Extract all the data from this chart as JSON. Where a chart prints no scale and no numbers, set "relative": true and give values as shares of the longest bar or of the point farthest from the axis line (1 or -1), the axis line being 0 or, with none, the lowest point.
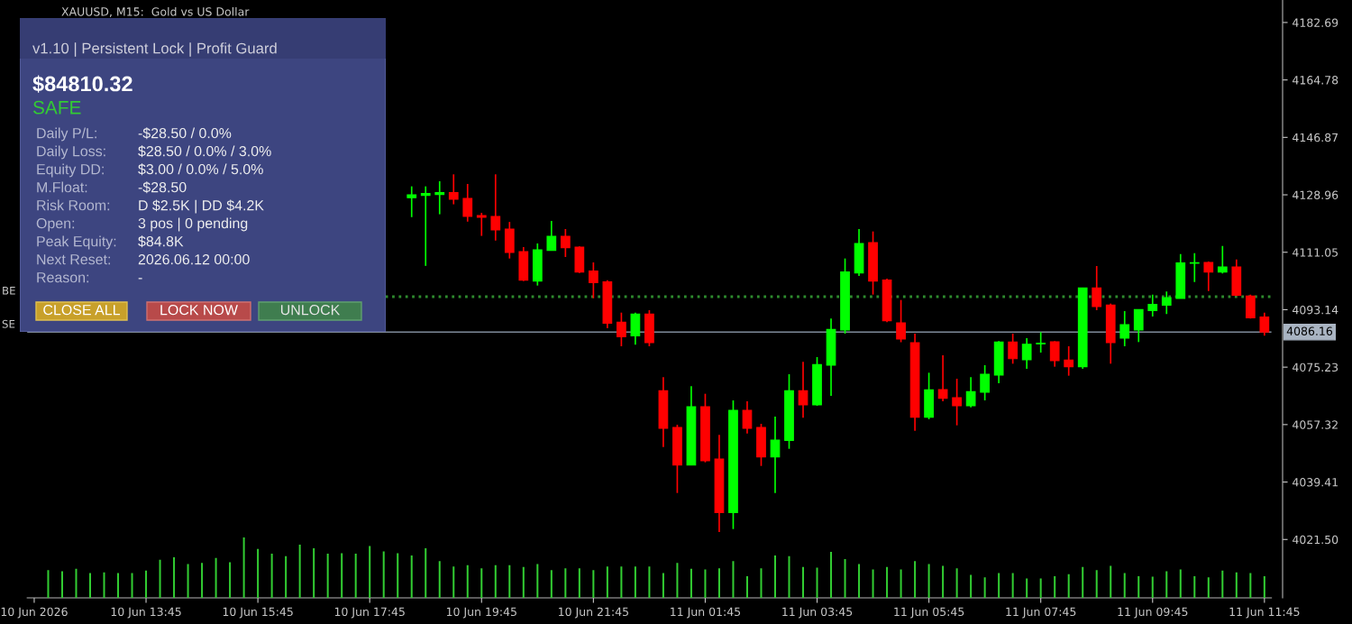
{
  "chart_data": [
    {
      "type": "candlestick",
      "title": "XAUUSD, M15:  Gold vs US Dollar",
      "categories": [
        "10 Jun 2026",
        null,
        null,
        null,
        null,
        null,
        null,
        null,
        "10 Jun 13:45",
        null,
        null,
        null,
        null,
        null,
        null,
        null,
        "10 Jun 15:45",
        null,
        null,
        null,
        null,
        null,
        null,
        null,
        "10 Jun 17:45",
        null,
        null,
        null,
        null,
        null,
        null,
        null,
        "10 Jun 19:45",
        null,
        null,
        null,
        null,
        null,
        null,
        null,
        "10 Jun 21:45",
        null,
        null,
        null,
        null,
        null,
        null,
        null,
        "11 Jun 01:45",
        null,
        null,
        null,
        null,
        null,
        null,
        null,
        "11 Jun 03:45",
        null,
        null,
        null,
        null,
        null,
        null,
        null,
        "11 Jun 05:45",
        null,
        null,
        null,
        null,
        null,
        null,
        null,
        "11 Jun 07:45",
        null,
        null,
        null,
        null,
        null,
        null,
        null,
        "11 Jun 09:45",
        null,
        null,
        null,
        null,
        null,
        null,
        null,
        "11 Jun 11:45"
      ],
      "ohlc": [
        null,
        null,
        null,
        null,
        null,
        null,
        null,
        null,
        null,
        null,
        null,
        null,
        null,
        null,
        null,
        null,
        null,
        null,
        null,
        null,
        null,
        null,
        null,
        null,
        null,
        null,
        null,
        [
          4128.04,
          4131.6,
          4122.0,
          4128.98
        ],
        [
          4128.79,
          4131.6,
          4106.8,
          4129.35
        ],
        [
          4129.07,
          4133.2,
          4122.9,
          4129.63
        ],
        [
          4129.63,
          4135.35,
          4126.0,
          4127.57
        ],
        [
          4127.85,
          4132.35,
          4120.6,
          4122.23
        ],
        [
          4122.5,
          4123.35,
          4116.15,
          4121.95
        ],
        [
          4122.23,
          4135.35,
          4114.7,
          4118.0
        ],
        [
          4118.29,
          4120.5,
          4109.1,
          4110.98
        ],
        [
          4111.26,
          4112.67,
          4102.08,
          4102.36
        ],
        [
          4102.08,
          4113.8,
          4100.67,
          4111.82
        ],
        [
          4111.64,
          4120.82,
          4111.64,
          4116.04
        ],
        [
          4116.04,
          4118.29,
          4109.57,
          4112.48
        ],
        [
          4112.67,
          4112.86,
          4104.61,
          4104.89
        ],
        [
          4105.17,
          4107.89,
          4096.73,
          4101.61
        ],
        [
          4101.8,
          4102.36,
          4087.36,
          4088.95
        ],
        [
          4089.23,
          4092.23,
          4081.74,
          4084.74
        ],
        [
          4085.02,
          4092.23,
          4082.21,
          4091.77
        ],
        [
          4091.77,
          4092.98,
          4081.74,
          4082.86
        ],
        [
          4067.86,
          4072.08,
          4050.34,
          4056.14
        ],
        [
          4056.43,
          4057.27,
          4036.0,
          4044.71
        ],
        [
          4044.71,
          4069.27,
          4044.71,
          4062.9
        ],
        [
          4062.9,
          4066.93,
          4045.55,
          4046.03
        ],
        [
          4046.6,
          4054.09,
          4023.81,
          4029.91
        ],
        [
          4029.91,
          4064.86,
          4024.75,
          4061.77
        ],
        [
          4061.77,
          4064.58,
          4054.55,
          4056.14
        ],
        [
          4056.43,
          4057.56,
          4044.43,
          4047.25
        ],
        [
          4047.25,
          4059.8,
          4036.0,
          4052.49
        ],
        [
          4052.4,
          4073.02,
          4049.77,
          4067.87
        ],
        [
          4067.87,
          4076.86,
          4059.43,
          4063.46
        ],
        [
          4063.46,
          4078.36,
          4063.18,
          4076.02
        ],
        [
          4075.83,
          4090.36,
          4066.27,
          4086.99
        ],
        [
          4086.8,
          4109.11,
          4085.68,
          4104.89
        ],
        [
          4104.61,
          4118.29,
          4103.67,
          4113.79
        ],
        [
          4114.08,
          4117.54,
          4097.86,
          4102.08
        ],
        [
          4102.36,
          4102.83,
          4089.24,
          4089.71
        ],
        [
          4089.0,
          4096.17,
          4083.0,
          4084.0
        ],
        [
          4082.86,
          4085.68,
          4055.4,
          4059.62
        ],
        [
          4059.62,
          4073.49,
          4059.0,
          4068.14
        ],
        [
          4068.24,
          4078.93,
          4064.59,
          4065.53
        ],
        [
          4065.71,
          4071.62,
          4057.09,
          4063.18
        ],
        [
          4063.18,
          4072.08,
          4062.71,
          4067.58
        ],
        [
          4067.4,
          4075.83,
          4064.87,
          4073.02
        ],
        [
          4072.74,
          4083.33,
          4070.21,
          4083.05
        ],
        [
          4083.05,
          4085.68,
          4076.3,
          4077.89
        ],
        [
          4077.52,
          4084.27,
          4074.71,
          4082.39
        ],
        [
          4082.5,
          4086.14,
          4079.77,
          4082.67
        ],
        [
          4083.15,
          4083.33,
          4075.37,
          4077.24
        ],
        [
          4077.43,
          4081.74,
          4072.56,
          4075.37
        ],
        [
          4075.37,
          4099.93,
          4074.71,
          4099.93
        ],
        [
          4099.93,
          4106.77,
          4093.0,
          4094.11
        ],
        [
          4094.58,
          4095.05,
          4076.3,
          4082.86
        ],
        [
          4084.27,
          4092.7,
          4081.74,
          4088.49
        ],
        [
          4086.8,
          4093.17,
          4083.05,
          4093.17
        ],
        [
          4092.89,
          4097.86,
          4091.02,
          4094.77
        ],
        [
          4094.58,
          4098.8,
          4091.77,
          4096.93
        ],
        [
          4096.65,
          4110.52,
          4096.65,
          4107.7
        ],
        [
          4107.6,
          4110.8,
          4101.8,
          4107.8
        ],
        [
          4107.89,
          4108.18,
          4098.99,
          4104.89
        ],
        [
          4104.89,
          4113.05,
          4104.42,
          4106.49
        ],
        [
          4106.49,
          4108.83,
          4097.39,
          4097.67
        ],
        [
          4097.39,
          4097.86,
          4090.36,
          4090.64
        ],
        [
          4090.83,
          4092.23,
          4085.02,
          4086.16
        ]
      ],
      "colors": [
        null,
        null,
        null,
        null,
        null,
        null,
        null,
        null,
        null,
        null,
        null,
        null,
        null,
        null,
        null,
        null,
        null,
        null,
        null,
        null,
        null,
        null,
        null,
        null,
        null,
        null,
        null,
        "#00ff00",
        "#00ff00",
        "#00ff00",
        "#ff0000",
        "#ff0000",
        "#ff0000",
        "#ff0000",
        "#ff0000",
        "#ff0000",
        "#00ff00",
        "#00ff00",
        "#ff0000",
        "#ff0000",
        "#ff0000",
        "#ff0000",
        "#ff0000",
        "#00ff00",
        "#ff0000",
        "#ff0000",
        "#ff0000",
        "#00ff00",
        "#ff0000",
        "#ff0000",
        "#00ff00",
        "#ff0000",
        "#ff0000",
        "#00ff00",
        "#00ff00",
        "#ff0000",
        "#00ff00",
        "#00ff00",
        "#00ff00",
        "#00ff00",
        "#ff0000",
        "#ff0000",
        "#ff0000",
        "#ff0000",
        "#00ff00",
        "#ff0000",
        "#ff0000",
        "#00ff00",
        "#00ff00",
        "#00ff00",
        "#ff0000",
        "#00ff00",
        "#00ff00",
        "#ff0000",
        "#ff0000",
        "#00ff00",
        "#ff0000",
        "#ff0000",
        "#00ff00",
        "#00ff00",
        "#00ff00",
        "#00ff00",
        "#00ff00",
        "#00ff00",
        "#ff0000",
        "#00ff00",
        "#ff0000",
        "#ff0000",
        "#ff0000"
      ],
      "ylim": [
        4003.3,
        4189.7
      ],
      "yticks": [
        {
          "value": 4021.5,
          "label": "4021.50"
        },
        4039.41,
        4057.32,
        4075.23,
        4093.14,
        4111.05,
        4128.96,
        4146.87,
        4164.78,
        4182.69
      ],
      "ref_lines": [
        {
          "axis": "y",
          "value": 4097.2,
          "label": "BE",
          "color": "#2e8b2e",
          "line_style": "dotted"
        },
        {
          "axis": "y",
          "value": 4086.16,
          "label": "4086.16",
          "color": "#7f8a99",
          "line_style": "solid"
        }
      ],
      "annotations": [
        "SE"
      ]
    },
    {
      "type": "bar",
      "relative": true,
      "color": "#32cd32",
      "categories": [
        null,
        null,
        null,
        null,
        null,
        null,
        null,
        null,
        null,
        null,
        null,
        null,
        null,
        null,
        null,
        null,
        null,
        null,
        null,
        null,
        null,
        null,
        null,
        null,
        null,
        null,
        null,
        null,
        null,
        null,
        null,
        null,
        null,
        null,
        null,
        null,
        null,
        null,
        null,
        null,
        null,
        null,
        null,
        null,
        null,
        null,
        null,
        null,
        null,
        null,
        null,
        null,
        null,
        null,
        null,
        null,
        null,
        null,
        null,
        null,
        null,
        null,
        null,
        null,
        null,
        null,
        null,
        null,
        null,
        null,
        null,
        null,
        null,
        null,
        null,
        null,
        null,
        null,
        null,
        null,
        null,
        null,
        null,
        null,
        null,
        null,
        null,
        null,
        null
      ],
      "values": [
        null,
        0.46,
        0.44,
        0.48,
        0.41,
        0.42,
        0.41,
        0.41,
        0.45,
        0.63,
        0.67,
        0.56,
        0.58,
        0.66,
        0.59,
        1,
        0.81,
        0.73,
        0.69,
        0.88,
        0.82,
        0.73,
        0.74,
        0.73,
        0.86,
        0.77,
        0.74,
        0.7,
        0.82,
        0.61,
        0.52,
        0.54,
        0.49,
        0.54,
        0.54,
        0.51,
        0.56,
        0.46,
        0.49,
        0.49,
        0.46,
        0.52,
        0.52,
        0.52,
        0.52,
        0.41,
        0.58,
        0.48,
        0.47,
        0.49,
        0.61,
        0.36,
        0.49,
        0.7,
        0.69,
        0.51,
        0.5,
        0.76,
        0.64,
        0.56,
        0.47,
        0.51,
        0.47,
        0.61,
        0.56,
        0.53,
        0.49,
        0.38,
        0.34,
        0.41,
        0.41,
        0.32,
        0.32,
        0.36,
        0.39,
        0.51,
        0.46,
        0.53,
        0.41,
        0.36,
        0.35,
        0.44,
        0.47,
        0.36,
        0.34,
        0.45,
        0.42,
        0.41,
        0.36
      ]
    },
    {
      "type": "other",
      "subtitle": "v1.10 | Persistent Lock | Profit Guard",
      "annotations": [
        "$84810.32",
        "SAFE",
        "Daily P/L:",
        "-$28.50 / 0.0%",
        "Daily Loss:",
        "$28.50 / 0.0% / 3.0%",
        "Equity DD:",
        "$3.00 / 0.0% / 5.0%",
        "M.Float:",
        "-$28.50",
        "Risk Room:",
        "D $2.5K | DD $4.2K",
        "Open:",
        "3 pos | 0 pending",
        "Peak Equity:",
        "$84.8K",
        "Next Reset:",
        "2026.06.12 00:00",
        "Reason:",
        "-",
        "CLOSE ALL",
        "LOCK NOW",
        "UNLOCK"
      ]
    }
  ]
}
